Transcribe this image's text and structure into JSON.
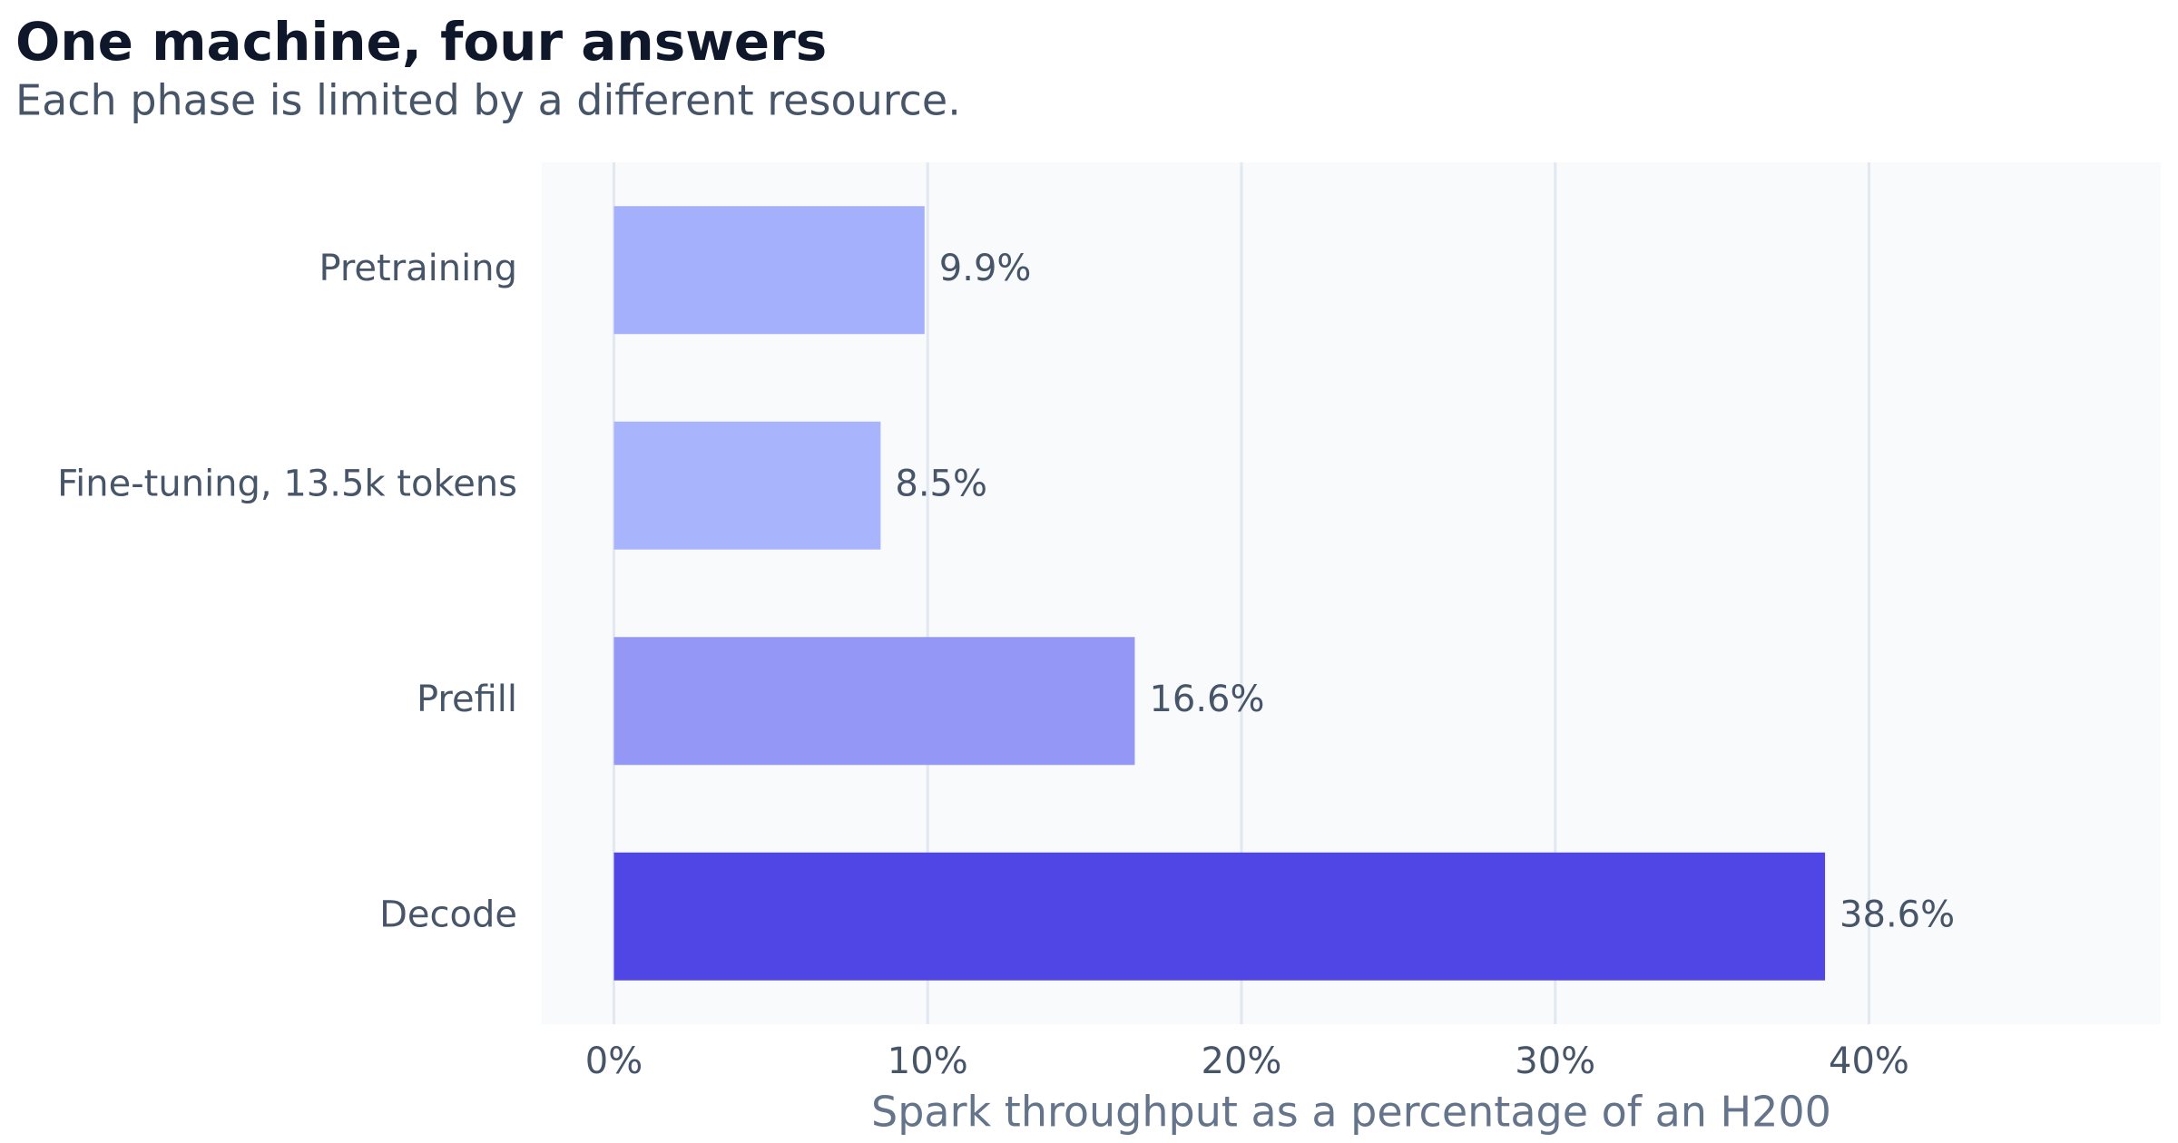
{
  "chart_data": {
    "type": "barh",
    "title": "One machine, four answers",
    "subtitle": "Each phase is limited by a different resource.",
    "x_label": "Spark throughput as a percentage of an H200",
    "categories": [
      "Pretraining",
      "Fine-tuning, 13.5k tokens",
      "Prefill",
      "Decode"
    ],
    "values": [
      9.9,
      8.5,
      16.6,
      38.6
    ],
    "value_labels": [
      "9.9%",
      "8.5%",
      "16.6%",
      "38.6%"
    ],
    "colors": [
      "#a5b0fc",
      "#a8b4fc",
      "#9597f7",
      "#4f46e5"
    ],
    "xlim": [
      -2.3,
      49.3
    ],
    "xticks": [
      {
        "value": 0,
        "label": "0%"
      },
      {
        "value": 10,
        "label": "10%"
      },
      {
        "value": 20,
        "label": "20%"
      },
      {
        "value": 30,
        "label": "30%"
      },
      {
        "value": 40,
        "label": "40%"
      }
    ],
    "grid": true
  }
}
